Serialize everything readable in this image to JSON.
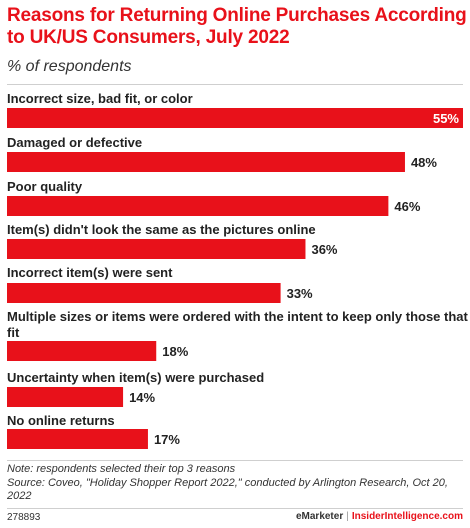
{
  "header": {
    "title": "Reasons for Returning Online Purchases According to UK/US Consumers, July 2022",
    "subtitle": "% of respondents"
  },
  "colors": {
    "bar": "#e8111a",
    "title": "#e8111a",
    "text": "#222222"
  },
  "chart_data": {
    "type": "bar",
    "orientation": "horizontal",
    "title": "Reasons for Returning Online Purchases According to UK/US Consumers, July 2022",
    "subtitle": "% of respondents",
    "categories": [
      "Incorrect size, bad fit, or color",
      "Damaged or defective",
      "Poor quality",
      "Item(s) didn't look the same as the pictures online",
      "Incorrect item(s) were sent",
      "Multiple sizes or items were ordered with the intent to keep only those that fit",
      "Uncertainty when item(s) were purchased",
      "No online returns"
    ],
    "values": [
      55,
      48,
      46,
      36,
      33,
      18,
      14,
      17
    ],
    "value_labels": [
      "55%",
      "48%",
      "46%",
      "36%",
      "33%",
      "18%",
      "14%",
      "17%"
    ],
    "xlim": [
      0,
      55
    ],
    "grid": false,
    "legend": "none"
  },
  "footer": {
    "note": "Note: respondents selected their top 3 reasons",
    "source": "Source: Coveo, \"Holiday Shopper Report 2022,\" conducted by Arlington Research, Oct 20, 2022",
    "chart_id": "278893",
    "brand_left": "eMarketer",
    "brand_sep": "|",
    "brand_right": "InsiderIntelligence.com"
  }
}
